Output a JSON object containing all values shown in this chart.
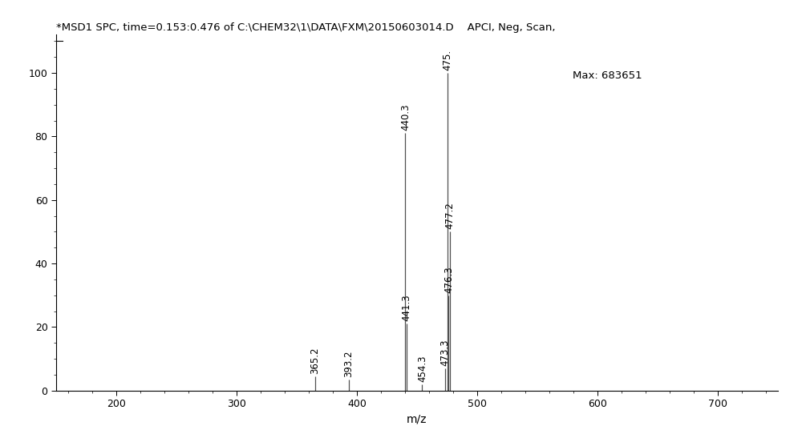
{
  "title": "*MSD1 SPC, time=0.153:0.476 of C:\\CHEM32\\1\\DATA\\FXM\\20150603014.D    APCI, Neg, Scan,",
  "max_label": "Max: 683651",
  "xlabel": "m/z",
  "xlim": [
    150,
    750
  ],
  "ylim": [
    0,
    112
  ],
  "xticks": [
    200,
    300,
    400,
    500,
    600,
    700
  ],
  "yticks": [
    0,
    20,
    40,
    60,
    80,
    100
  ],
  "background_color": "#ffffff",
  "peaks": [
    {
      "mz": 365.2,
      "intensity": 4.5,
      "label": "365.2"
    },
    {
      "mz": 393.2,
      "intensity": 3.5,
      "label": "393.2"
    },
    {
      "mz": 440.3,
      "intensity": 81.0,
      "label": "440.3"
    },
    {
      "mz": 441.3,
      "intensity": 21.0,
      "label": "441.3"
    },
    {
      "mz": 454.3,
      "intensity": 2.0,
      "label": "454.3"
    },
    {
      "mz": 473.3,
      "intensity": 7.0,
      "label": "473.3"
    },
    {
      "mz": 475.0,
      "intensity": 100.0,
      "label": "475."
    },
    {
      "mz": 476.3,
      "intensity": 30.0,
      "label": "476.3"
    },
    {
      "mz": 477.2,
      "intensity": 50.0,
      "label": "477.2"
    }
  ],
  "line_color": "#505050",
  "title_fontsize": 9.5,
  "axis_fontsize": 10,
  "tick_fontsize": 9,
  "annotation_fontsize": 8.5,
  "max_fontsize": 9.5
}
